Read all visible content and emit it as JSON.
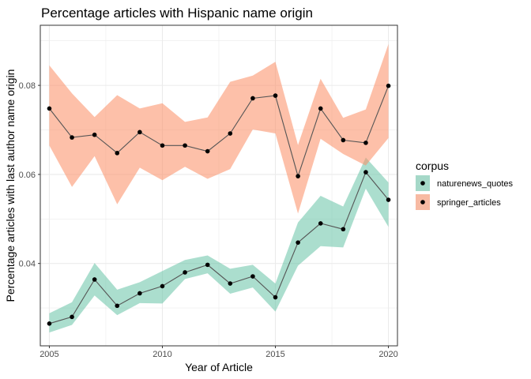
{
  "chart_data": {
    "type": "line",
    "title": "Percentage articles with Hispanic name origin",
    "xlabel": "Year of Article",
    "ylabel": "Percentage articles with last author name origin",
    "xlim": [
      2004.6,
      2020.4
    ],
    "ylim": [
      0.0215,
      0.0935
    ],
    "x_ticks": [
      2005,
      2010,
      2015,
      2020
    ],
    "y_ticks": [
      0.04,
      0.06,
      0.08
    ],
    "x_tick_labels": [
      "2005",
      "2010",
      "2015",
      "2020"
    ],
    "y_tick_labels": [
      "0.04",
      "0.06",
      "0.08"
    ],
    "grid": true,
    "legend": {
      "title": "corpus",
      "position": "right"
    },
    "x": [
      2005,
      2006,
      2007,
      2008,
      2009,
      2010,
      2011,
      2012,
      2013,
      2014,
      2015,
      2016,
      2017,
      2018,
      2019,
      2020
    ],
    "series": [
      {
        "name": "naturenews_quotes",
        "color": "#66C2A5",
        "values": [
          0.0265,
          0.028,
          0.0364,
          0.0305,
          0.0333,
          0.0349,
          0.038,
          0.0397,
          0.0355,
          0.0371,
          0.0324,
          0.0447,
          0.049,
          0.0477,
          0.0605,
          0.0543
        ],
        "lower": [
          0.0245,
          0.0262,
          0.0328,
          0.0284,
          0.0311,
          0.031,
          0.0365,
          0.0378,
          0.0332,
          0.0346,
          0.0292,
          0.0395,
          0.0439,
          0.0436,
          0.0568,
          0.0482
        ],
        "upper": [
          0.0288,
          0.0313,
          0.0401,
          0.0341,
          0.0358,
          0.0383,
          0.0408,
          0.0418,
          0.0388,
          0.0397,
          0.0355,
          0.0492,
          0.0552,
          0.0528,
          0.0638,
          0.0582
        ]
      },
      {
        "name": "springer_articles",
        "color": "#FC8D62",
        "values": [
          0.0748,
          0.0683,
          0.0689,
          0.0648,
          0.0695,
          0.0665,
          0.0665,
          0.0652,
          0.0692,
          0.0771,
          0.0777,
          0.0596,
          0.0748,
          0.0677,
          0.0671,
          0.0799
        ],
        "lower": [
          0.0665,
          0.0572,
          0.0641,
          0.0533,
          0.0615,
          0.0587,
          0.0617,
          0.059,
          0.0612,
          0.0701,
          0.0692,
          0.0512,
          0.068,
          0.0646,
          0.062,
          0.0682
        ],
        "upper": [
          0.0845,
          0.0782,
          0.0729,
          0.0778,
          0.0748,
          0.076,
          0.0718,
          0.0728,
          0.0808,
          0.0822,
          0.0853,
          0.0666,
          0.0815,
          0.0727,
          0.0746,
          0.0893
        ]
      }
    ]
  }
}
